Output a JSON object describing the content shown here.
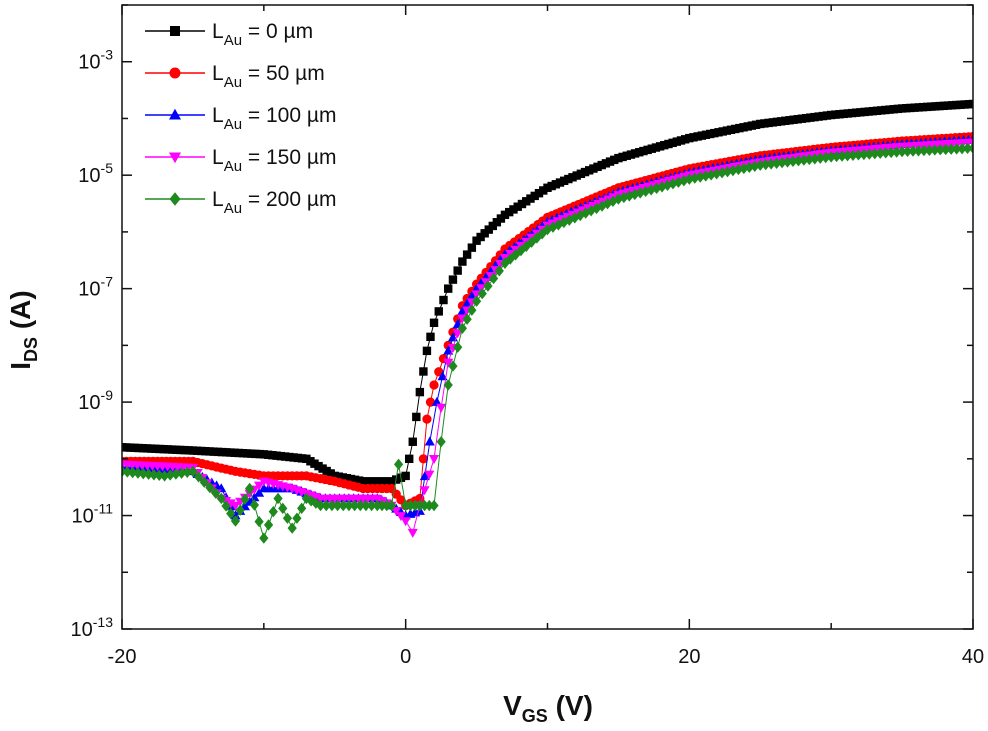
{
  "chart_data": {
    "type": "scatter",
    "x_axis": {
      "label_main": "V",
      "label_sub": "GS",
      "label_unit": " (V)",
      "range": [
        -20,
        40
      ],
      "ticks": [
        -20,
        0,
        20,
        40
      ],
      "tick_labels": [
        "-20",
        "0",
        "20",
        "40"
      ]
    },
    "y_axis": {
      "label_main": "I",
      "label_sub": "DS",
      "label_unit": " (A)",
      "scale": "log",
      "range": [
        1e-13,
        0.01
      ],
      "major_ticks": [
        {
          "value": 1e-13,
          "base": "10",
          "exp": "-13"
        },
        {
          "value": 1e-11,
          "base": "10",
          "exp": "-11"
        },
        {
          "value": 1e-09,
          "base": "10",
          "exp": "-9"
        },
        {
          "value": 1e-07,
          "base": "10",
          "exp": "-7"
        },
        {
          "value": 1e-05,
          "base": "10",
          "exp": "-5"
        },
        {
          "value": 0.001,
          "base": "10",
          "exp": "-3"
        }
      ]
    },
    "legend": {
      "placement": "top-left",
      "entries": [
        {
          "prefix": "L",
          "sub": "Au",
          "text": " = 0  µm"
        },
        {
          "prefix": "L",
          "sub": "Au",
          "text": " = 50  µm"
        },
        {
          "prefix": "L",
          "sub": "Au",
          "text": " = 100  µm"
        },
        {
          "prefix": "L",
          "sub": "Au",
          "text": " = 150  µm"
        },
        {
          "prefix": "L",
          "sub": "Au",
          "text": " = 200  µm"
        }
      ]
    },
    "series": [
      {
        "color": "#000000",
        "marker": "square",
        "x": [
          -20,
          -15,
          -10,
          -7,
          -5,
          -3,
          -1,
          0,
          0.5,
          1,
          1.5,
          2,
          3,
          4,
          5,
          7,
          10,
          15,
          20,
          25,
          30,
          35,
          40
        ],
        "y": [
          1.6e-10,
          1.4e-10,
          1.2e-10,
          1e-10,
          5e-11,
          4e-11,
          4e-11,
          5e-11,
          2e-10,
          1.5e-09,
          8e-09,
          2.5e-08,
          1e-07,
          3e-07,
          7e-07,
          2e-06,
          6e-06,
          2e-05,
          4.5e-05,
          8e-05,
          0.000115,
          0.00015,
          0.00018
        ]
      },
      {
        "color": "#ff0000",
        "marker": "circle",
        "x": [
          -20,
          -15,
          -12,
          -10,
          -7,
          -5,
          -3,
          -1,
          0,
          1,
          1.5,
          2,
          3,
          4,
          5,
          7,
          10,
          15,
          20,
          25,
          30,
          35,
          40
        ],
        "y": [
          9e-11,
          9e-11,
          6e-11,
          5e-11,
          5e-11,
          4e-11,
          3e-11,
          3e-11,
          1.5e-11,
          2e-11,
          5e-10,
          2e-09,
          1e-08,
          5e-08,
          1.2e-07,
          5e-07,
          1.8e-06,
          6e-06,
          1.3e-05,
          2.2e-05,
          3.1e-05,
          4e-05,
          4.8e-05
        ]
      },
      {
        "color": "#0000ff",
        "marker": "triangle-up",
        "x": [
          -20,
          -15,
          -13,
          -12,
          -10,
          -8,
          -6,
          -4,
          -2,
          -1,
          0,
          1,
          1.7,
          2.2,
          3,
          4,
          5,
          7,
          10,
          15,
          20,
          25,
          30,
          35,
          40
        ],
        "y": [
          7e-11,
          6e-11,
          3e-11,
          1e-11,
          3e-11,
          3e-11,
          2e-11,
          2e-11,
          2e-11,
          1.5e-11,
          1e-11,
          1.2e-11,
          2e-10,
          1e-09,
          8e-09,
          4e-08,
          1e-07,
          4e-07,
          1.5e-06,
          5e-06,
          1.1e-05,
          1.9e-05,
          2.7e-05,
          3.5e-05,
          4.2e-05
        ]
      },
      {
        "color": "#ff00ff",
        "marker": "triangle-down",
        "x": [
          -20,
          -15,
          -13,
          -12,
          -10,
          -8,
          -6,
          -4,
          -2,
          -1,
          0,
          0.5,
          1,
          2,
          2.5,
          3,
          4,
          5,
          7,
          10,
          15,
          20,
          25,
          30,
          35,
          40
        ],
        "y": [
          8e-11,
          7e-11,
          2e-11,
          1.5e-11,
          4e-11,
          3e-11,
          2e-11,
          2e-11,
          2e-11,
          1.5e-11,
          8e-12,
          5e-12,
          1.5e-11,
          1e-10,
          8e-10,
          5e-09,
          3e-08,
          8e-08,
          3.5e-07,
          1.3e-06,
          4.5e-06,
          1e-05,
          1.7e-05,
          2.5e-05,
          3.2e-05,
          3.8e-05
        ]
      },
      {
        "color": "#1e8a1e",
        "marker": "diamond",
        "x": [
          -20,
          -17,
          -15,
          -13,
          -12,
          -11,
          -10,
          -9,
          -8,
          -7,
          -6,
          -4,
          -2,
          -1,
          -0.5,
          0,
          1,
          2,
          2.5,
          3,
          4,
          5,
          7,
          10,
          15,
          20,
          25,
          30,
          35,
          40
        ],
        "y": [
          6e-11,
          5e-11,
          6e-11,
          2e-11,
          8e-12,
          3e-11,
          4e-12,
          2e-11,
          6e-12,
          2e-11,
          1.5e-11,
          1.5e-11,
          1.5e-11,
          1.5e-11,
          8e-11,
          1.5e-11,
          1.5e-11,
          1.5e-11,
          2e-10,
          2e-09,
          2e-08,
          6e-08,
          2.8e-07,
          1.1e-06,
          3.8e-06,
          8.5e-06,
          1.5e-05,
          2.1e-05,
          2.6e-05,
          3e-05
        ]
      }
    ]
  }
}
